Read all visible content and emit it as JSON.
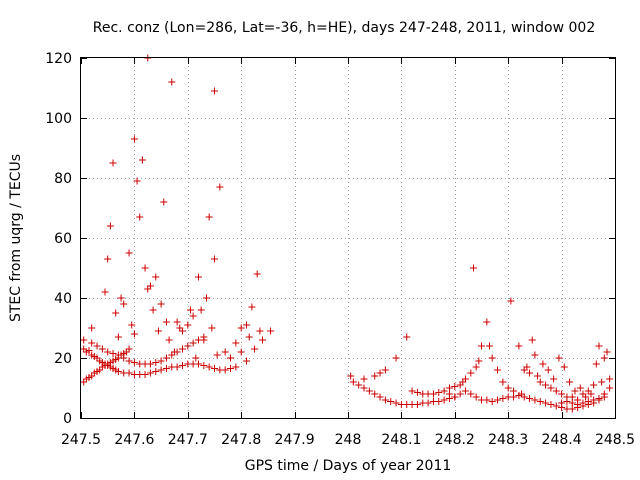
{
  "chart_data": {
    "type": "scatter",
    "title": "Rec. conz (Lon=286, Lat=-36, h=HE), days 247-248, 2011, window 002",
    "xlabel": "GPS time / Days of year 2011",
    "ylabel": "STEC from uqrg / TECUs",
    "xlim": [
      247.5,
      248.5
    ],
    "ylim": [
      0,
      120
    ],
    "xticks": [
      247.5,
      247.6,
      247.7,
      247.8,
      247.9,
      248.0,
      248.1,
      248.2,
      248.3,
      248.4,
      248.5
    ],
    "xtick_labels": [
      "247.5",
      "247.6",
      "247.7",
      "247.8",
      "247.9",
      "248",
      "248.1",
      "248.2",
      "248.3",
      "248.4",
      "248.5"
    ],
    "yticks": [
      0,
      20,
      40,
      60,
      80,
      100,
      120
    ],
    "ytick_labels": [
      "0",
      "20",
      "40",
      "60",
      "80",
      "100",
      "120"
    ],
    "grid": true,
    "marker": "+",
    "color": "#cc0000",
    "points": [
      [
        247.505,
        12
      ],
      [
        247.51,
        13
      ],
      [
        247.515,
        13.5
      ],
      [
        247.52,
        14
      ],
      [
        247.525,
        15
      ],
      [
        247.53,
        15.5
      ],
      [
        247.535,
        16
      ],
      [
        247.54,
        17
      ],
      [
        247.545,
        17.5
      ],
      [
        247.55,
        18
      ],
      [
        247.555,
        18.5
      ],
      [
        247.56,
        19
      ],
      [
        247.565,
        19.5
      ],
      [
        247.57,
        20
      ],
      [
        247.575,
        21
      ],
      [
        247.58,
        21.5
      ],
      [
        247.585,
        22
      ],
      [
        247.59,
        23
      ],
      [
        247.505,
        23
      ],
      [
        247.51,
        22
      ],
      [
        247.515,
        22.5
      ],
      [
        247.52,
        21
      ],
      [
        247.525,
        20.5
      ],
      [
        247.53,
        20
      ],
      [
        247.535,
        19
      ],
      [
        247.54,
        18.5
      ],
      [
        247.545,
        18
      ],
      [
        247.55,
        17.5
      ],
      [
        247.555,
        17
      ],
      [
        247.56,
        16.5
      ],
      [
        247.565,
        16
      ],
      [
        247.57,
        15.5
      ],
      [
        247.58,
        15
      ],
      [
        247.59,
        15
      ],
      [
        247.6,
        14.5
      ],
      [
        247.61,
        14.5
      ],
      [
        247.62,
        14.5
      ],
      [
        247.63,
        15
      ],
      [
        247.64,
        15.5
      ],
      [
        247.65,
        16
      ],
      [
        247.66,
        16.5
      ],
      [
        247.67,
        17
      ],
      [
        247.68,
        17
      ],
      [
        247.69,
        17.5
      ],
      [
        247.7,
        18
      ],
      [
        247.71,
        18
      ],
      [
        247.72,
        18
      ],
      [
        247.73,
        17.5
      ],
      [
        247.74,
        17
      ],
      [
        247.75,
        16.5
      ],
      [
        247.76,
        16
      ],
      [
        247.77,
        16
      ],
      [
        247.78,
        16.5
      ],
      [
        247.79,
        17
      ],
      [
        247.505,
        26
      ],
      [
        247.52,
        25
      ],
      [
        247.53,
        24
      ],
      [
        247.54,
        23
      ],
      [
        247.55,
        22
      ],
      [
        247.56,
        21.5
      ],
      [
        247.57,
        21
      ],
      [
        247.58,
        20
      ],
      [
        247.59,
        19
      ],
      [
        247.6,
        18.5
      ],
      [
        247.61,
        18
      ],
      [
        247.62,
        18
      ],
      [
        247.63,
        18
      ],
      [
        247.64,
        18.5
      ],
      [
        247.65,
        19
      ],
      [
        247.66,
        20
      ],
      [
        247.67,
        21
      ],
      [
        247.68,
        22
      ],
      [
        247.69,
        23
      ],
      [
        247.7,
        24
      ],
      [
        247.71,
        25
      ],
      [
        247.72,
        26
      ],
      [
        247.73,
        27
      ],
      [
        247.52,
        30
      ],
      [
        247.545,
        42
      ],
      [
        247.55,
        53
      ],
      [
        247.555,
        64
      ],
      [
        247.56,
        85
      ],
      [
        247.565,
        35
      ],
      [
        247.57,
        27
      ],
      [
        247.575,
        40
      ],
      [
        247.58,
        38
      ],
      [
        247.59,
        55
      ],
      [
        247.595,
        31
      ],
      [
        247.6,
        28
      ],
      [
        247.605,
        79
      ],
      [
        247.6,
        93
      ],
      [
        247.61,
        67
      ],
      [
        247.615,
        86
      ],
      [
        247.62,
        50
      ],
      [
        247.625,
        43
      ],
      [
        247.625,
        120
      ],
      [
        247.63,
        44
      ],
      [
        247.635,
        36
      ],
      [
        247.64,
        47
      ],
      [
        247.645,
        29
      ],
      [
        247.65,
        38
      ],
      [
        247.655,
        72
      ],
      [
        247.66,
        32
      ],
      [
        247.665,
        26
      ],
      [
        247.67,
        112
      ],
      [
        247.675,
        22
      ],
      [
        247.68,
        32
      ],
      [
        247.685,
        30
      ],
      [
        247.69,
        29
      ],
      [
        247.7,
        31
      ],
      [
        247.705,
        36
      ],
      [
        247.71,
        34
      ],
      [
        247.715,
        20
      ],
      [
        247.72,
        47
      ],
      [
        247.725,
        36
      ],
      [
        247.73,
        26
      ],
      [
        247.735,
        40
      ],
      [
        247.74,
        67
      ],
      [
        247.745,
        30
      ],
      [
        247.75,
        109
      ],
      [
        247.75,
        53
      ],
      [
        247.755,
        21
      ],
      [
        247.76,
        77
      ],
      [
        247.77,
        22
      ],
      [
        247.78,
        20
      ],
      [
        247.79,
        25
      ],
      [
        247.8,
        30
      ],
      [
        247.81,
        31
      ],
      [
        247.815,
        27
      ],
      [
        247.82,
        37
      ],
      [
        247.825,
        23
      ],
      [
        247.83,
        48
      ],
      [
        247.835,
        29
      ],
      [
        247.84,
        26
      ],
      [
        247.855,
        29
      ],
      [
        247.8,
        22
      ],
      [
        247.81,
        19
      ],
      [
        248.005,
        14
      ],
      [
        248.01,
        12
      ],
      [
        248.02,
        11
      ],
      [
        248.03,
        10
      ],
      [
        248.04,
        9
      ],
      [
        248.05,
        8
      ],
      [
        248.06,
        7
      ],
      [
        248.07,
        6
      ],
      [
        248.08,
        5.5
      ],
      [
        248.09,
        5
      ],
      [
        248.1,
        4.5
      ],
      [
        248.11,
        4.5
      ],
      [
        248.12,
        4.5
      ],
      [
        248.13,
        4.5
      ],
      [
        248.14,
        5
      ],
      [
        248.15,
        5
      ],
      [
        248.16,
        5.5
      ],
      [
        248.17,
        5.5
      ],
      [
        248.18,
        6
      ],
      [
        248.19,
        6.5
      ],
      [
        248.2,
        7
      ],
      [
        248.03,
        13
      ],
      [
        248.05,
        14
      ],
      [
        248.06,
        15
      ],
      [
        248.07,
        16
      ],
      [
        248.09,
        20
      ],
      [
        248.11,
        27
      ],
      [
        248.12,
        9
      ],
      [
        248.13,
        8.5
      ],
      [
        248.14,
        8
      ],
      [
        248.15,
        8
      ],
      [
        248.16,
        8
      ],
      [
        248.17,
        8.5
      ],
      [
        248.18,
        9
      ],
      [
        248.19,
        10
      ],
      [
        248.2,
        10.5
      ],
      [
        248.21,
        11
      ],
      [
        248.215,
        12
      ],
      [
        248.22,
        13
      ],
      [
        248.23,
        15
      ],
      [
        248.235,
        50
      ],
      [
        248.24,
        17
      ],
      [
        248.245,
        19
      ],
      [
        248.25,
        24
      ],
      [
        248.26,
        32
      ],
      [
        248.265,
        24
      ],
      [
        248.27,
        20
      ],
      [
        248.28,
        16
      ],
      [
        248.29,
        12
      ],
      [
        248.3,
        10
      ],
      [
        248.305,
        39
      ],
      [
        248.31,
        9
      ],
      [
        248.32,
        24
      ],
      [
        248.325,
        8
      ],
      [
        248.33,
        16
      ],
      [
        248.335,
        17
      ],
      [
        248.34,
        15
      ],
      [
        248.345,
        26
      ],
      [
        248.35,
        21
      ],
      [
        248.355,
        14
      ],
      [
        248.36,
        12
      ],
      [
        248.365,
        18
      ],
      [
        248.37,
        11
      ],
      [
        248.375,
        16
      ],
      [
        248.38,
        10
      ],
      [
        248.385,
        13
      ],
      [
        248.39,
        9
      ],
      [
        248.395,
        20
      ],
      [
        248.4,
        8
      ],
      [
        248.405,
        17
      ],
      [
        248.41,
        7
      ],
      [
        248.415,
        12
      ],
      [
        248.42,
        7
      ],
      [
        248.425,
        9
      ],
      [
        248.43,
        6
      ],
      [
        248.435,
        10
      ],
      [
        248.44,
        8
      ],
      [
        248.445,
        7
      ],
      [
        248.45,
        9
      ],
      [
        248.455,
        8
      ],
      [
        248.46,
        11
      ],
      [
        248.465,
        18
      ],
      [
        248.47,
        24
      ],
      [
        248.475,
        12
      ],
      [
        248.48,
        20
      ],
      [
        248.485,
        22
      ],
      [
        248.49,
        13
      ],
      [
        248.19,
        8
      ],
      [
        248.2,
        7
      ],
      [
        248.21,
        8
      ],
      [
        248.22,
        9
      ],
      [
        248.23,
        8
      ],
      [
        248.24,
        7
      ],
      [
        248.25,
        6
      ],
      [
        248.26,
        6
      ],
      [
        248.27,
        5.5
      ],
      [
        248.28,
        6
      ],
      [
        248.29,
        6.5
      ],
      [
        248.3,
        7
      ],
      [
        248.31,
        7
      ],
      [
        248.32,
        7.5
      ],
      [
        248.33,
        7
      ],
      [
        248.34,
        6.5
      ],
      [
        248.35,
        6
      ],
      [
        248.36,
        5.5
      ],
      [
        248.37,
        5
      ],
      [
        248.38,
        4.5
      ],
      [
        248.39,
        4
      ],
      [
        248.4,
        3.5
      ],
      [
        248.41,
        3
      ],
      [
        248.42,
        3
      ],
      [
        248.43,
        3.5
      ],
      [
        248.44,
        4
      ],
      [
        248.45,
        4.5
      ],
      [
        248.46,
        5
      ],
      [
        248.47,
        6
      ],
      [
        248.48,
        7
      ],
      [
        248.4,
        5
      ],
      [
        248.41,
        5.5
      ],
      [
        248.42,
        5
      ],
      [
        248.43,
        4.5
      ],
      [
        248.44,
        5
      ],
      [
        248.45,
        5.5
      ],
      [
        248.46,
        6
      ],
      [
        248.47,
        6.5
      ],
      [
        248.48,
        8
      ],
      [
        248.49,
        10
      ]
    ]
  }
}
